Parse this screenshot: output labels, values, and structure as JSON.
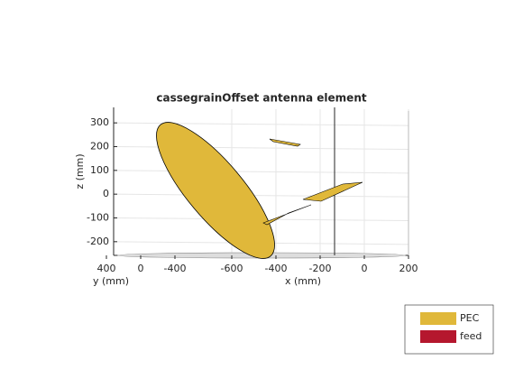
{
  "chart_data": {
    "type": "antenna3d",
    "title": "cassegrainOffset antenna element",
    "zlabel": "z (mm)",
    "xlabel": "x (mm)",
    "ylabel": "y (mm)",
    "zlim": [
      -250,
      350
    ],
    "zticks": [
      -200,
      -100,
      0,
      100,
      200,
      300
    ],
    "xlim": [
      -600,
      200
    ],
    "xticks": [
      -600,
      -400,
      -200,
      0,
      200
    ],
    "ylim": [
      -400,
      400
    ],
    "yticks": [
      -400,
      0,
      400
    ],
    "grid": true,
    "legend": [
      {
        "name": "PEC",
        "color": "#e0b83a"
      },
      {
        "name": "feed",
        "color": "#b5172e"
      }
    ]
  }
}
